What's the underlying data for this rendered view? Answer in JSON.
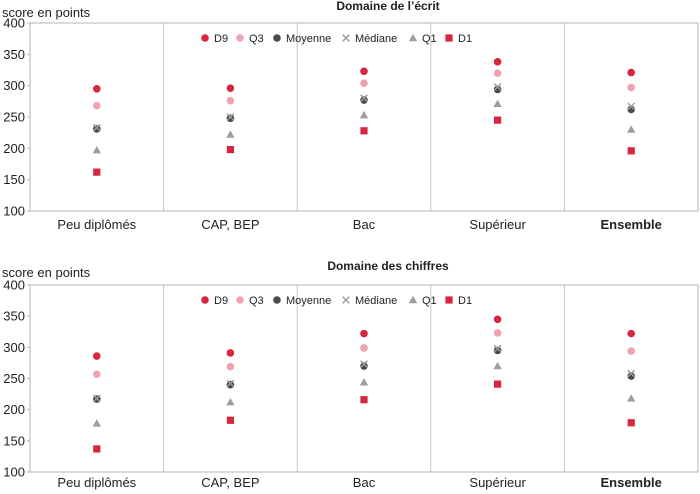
{
  "chart_data": [
    {
      "type": "scatter",
      "title": "Domaine de l’écrit",
      "ylabel": "score en points",
      "ylim": [
        100,
        400
      ],
      "yticks": [
        100,
        150,
        200,
        250,
        300,
        350,
        400
      ],
      "categories": [
        "Peu diplômés",
        "CAP, BEP",
        "Bac",
        "Supérieur",
        "Ensemble"
      ],
      "bold_category": "Ensemble",
      "grid": "vertical",
      "legend_position": "top",
      "series": [
        {
          "name": "D9",
          "marker": "circle",
          "color": "#d7263d",
          "values": [
            295,
            296,
            323,
            338,
            321
          ]
        },
        {
          "name": "Q3",
          "marker": "circle",
          "color": "#f0a3ae",
          "values": [
            268,
            276,
            304,
            320,
            297
          ]
        },
        {
          "name": "Moyenne",
          "marker": "circle",
          "color": "#4a4a4a",
          "values": [
            231,
            248,
            277,
            294,
            262
          ]
        },
        {
          "name": "Médiane",
          "marker": "x",
          "color": "#9b9b9b",
          "values": [
            233,
            250,
            280,
            298,
            267
          ]
        },
        {
          "name": "Q1",
          "marker": "triangle",
          "color": "#9e9e9e",
          "values": [
            197,
            222,
            253,
            271,
            230
          ]
        },
        {
          "name": "D1",
          "marker": "square",
          "color": "#d7263d",
          "values": [
            162,
            198,
            228,
            245,
            196
          ]
        }
      ]
    },
    {
      "type": "scatter",
      "title": "Domaine des chiffres",
      "ylabel": "score en points",
      "ylim": [
        100,
        400
      ],
      "yticks": [
        100,
        150,
        200,
        250,
        300,
        350,
        400
      ],
      "categories": [
        "Peu diplômés",
        "CAP, BEP",
        "Bac",
        "Supérieur",
        "Ensemble"
      ],
      "bold_category": "Ensemble",
      "grid": "vertical",
      "legend_position": "top",
      "series": [
        {
          "name": "D9",
          "marker": "circle",
          "color": "#d7263d",
          "values": [
            286,
            291,
            322,
            345,
            322
          ]
        },
        {
          "name": "Q3",
          "marker": "circle",
          "color": "#f0a3ae",
          "values": [
            257,
            269,
            299,
            323,
            294
          ]
        },
        {
          "name": "Moyenne",
          "marker": "circle",
          "color": "#4a4a4a",
          "values": [
            217,
            240,
            270,
            295,
            254
          ]
        },
        {
          "name": "Médiane",
          "marker": "x",
          "color": "#9b9b9b",
          "values": [
            218,
            242,
            273,
            298,
            258
          ]
        },
        {
          "name": "Q1",
          "marker": "triangle",
          "color": "#9e9e9e",
          "values": [
            178,
            212,
            244,
            270,
            218
          ]
        },
        {
          "name": "D1",
          "marker": "square",
          "color": "#d7263d",
          "values": [
            137,
            183,
            216,
            241,
            179
          ]
        }
      ]
    }
  ]
}
